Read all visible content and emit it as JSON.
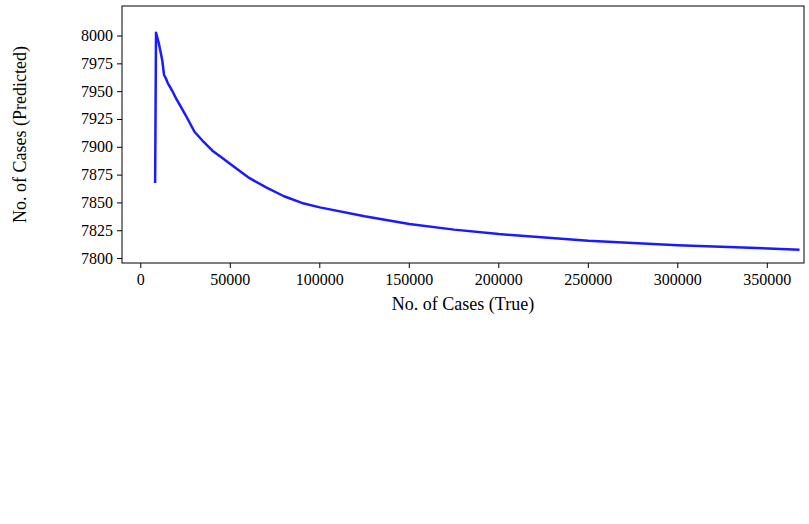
{
  "chart_data": {
    "type": "line",
    "x_label": "No. of Cases (True)",
    "y_label": "No. of Cases (Predicted)",
    "x": [
      8000,
      8500,
      9000,
      10000,
      11000,
      12000,
      13000,
      14000,
      15000,
      17500,
      20000,
      22500,
      25000,
      30000,
      35000,
      40000,
      45000,
      50000,
      60000,
      70000,
      80000,
      90000,
      100000,
      125000,
      150000,
      175000,
      200000,
      250000,
      300000,
      368000
    ],
    "series": [
      {
        "name": "Predicted",
        "color": "#1a1aff",
        "values": [
          7868,
          8003,
          8000,
          7994,
          7986,
          7978,
          7965,
          7962,
          7958,
          7951,
          7943,
          7936,
          7929,
          7914,
          7905,
          7897,
          7891,
          7885,
          7873,
          7864,
          7856,
          7850,
          7846,
          7838,
          7831,
          7826,
          7822,
          7816,
          7812,
          7808
        ]
      }
    ],
    "xlim": [
      -10500,
      370500
    ],
    "ylim": [
      7796,
      8027
    ],
    "xticks": [
      0,
      50000,
      100000,
      150000,
      200000,
      250000,
      300000,
      350000
    ],
    "yticks": [
      7800,
      7825,
      7850,
      7875,
      7900,
      7925,
      7950,
      7975,
      8000
    ],
    "grid": false
  }
}
